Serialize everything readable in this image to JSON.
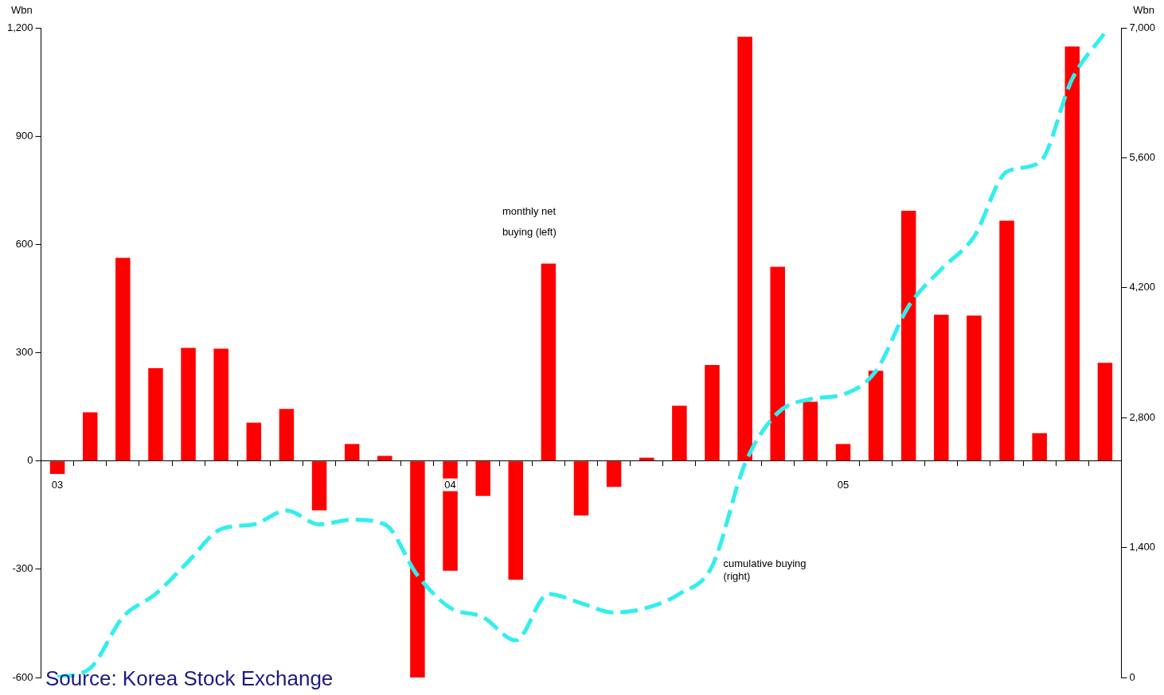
{
  "chart_data": {
    "type": "bar",
    "ylabel": "Wbn",
    "y2label": "Wbn",
    "categories": [
      "03",
      null,
      null,
      null,
      null,
      null,
      null,
      null,
      null,
      null,
      null,
      null,
      "04",
      null,
      null,
      null,
      null,
      null,
      null,
      null,
      null,
      null,
      null,
      null,
      "05",
      null,
      null,
      null,
      null,
      null,
      null,
      null,
      null
    ],
    "series": [
      {
        "name": "monthly net buying (left)",
        "color": "#ff0000",
        "values": [
          -36,
          135,
          563,
          257,
          313,
          311,
          106,
          144,
          -137,
          47,
          14,
          -600,
          -304,
          -97,
          -329,
          547,
          -151,
          -72,
          9,
          153,
          266,
          1175,
          538,
          164,
          47,
          250,
          693,
          405,
          403,
          666,
          77,
          1148,
          272
        ]
      },
      {
        "name": "cumulative buying (right)",
        "type": "line",
        "axis": "y2",
        "color": "#33eeee",
        "line_style": "dashed",
        "marker": "none",
        "values": [
          0,
          100,
          650,
          900,
          1250,
          1600,
          1650,
          1800,
          1650,
          1700,
          1650,
          1100,
          750,
          650,
          400,
          900,
          800,
          700,
          750,
          900,
          1200,
          2300,
          2850,
          3000,
          3050,
          3300,
          4000,
          4400,
          4750,
          5450,
          5550,
          6450,
          6950
        ]
      }
    ],
    "ylim": [
      -600,
      1200
    ],
    "yticks": [
      -600,
      -300,
      0,
      300,
      600,
      900,
      {
        "value": 1200,
        "label": "1,200"
      }
    ],
    "y2lim": [
      0,
      7000
    ],
    "y2ticks": [
      0,
      {
        "value": 1400,
        "label": "1,400"
      },
      {
        "value": 2800,
        "label": "2,800"
      },
      {
        "value": 4200,
        "label": "4,200"
      },
      {
        "value": 5600,
        "label": "5,600"
      },
      {
        "value": 7000,
        "label": "7,000"
      }
    ],
    "grid": false,
    "legend": false,
    "annotations": [
      "Source: Korea Stock Exchange"
    ]
  }
}
